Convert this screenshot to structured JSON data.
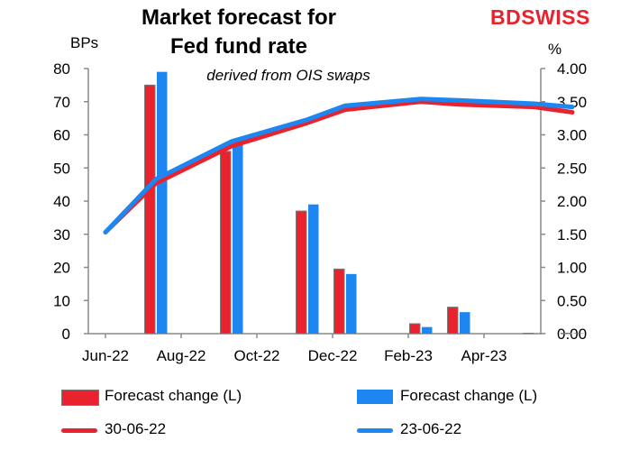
{
  "header": {
    "title_line1": "Market forecast for",
    "title_line2": "Fed fund rate",
    "subtitle": "derived from OIS swaps",
    "left_unit": "BPs",
    "right_unit": "%",
    "logo_bd": "BD",
    "logo_swiss": "SWISS"
  },
  "colors": {
    "red": "#e8232e",
    "blue": "#1e86f0",
    "red_edge": "#7a7a7a",
    "axis": "#8a8a8a"
  },
  "legend": [
    {
      "label": "Forecast change (L)",
      "kind": "bar",
      "color": "#e8232e"
    },
    {
      "label": "Forecast change (L)",
      "kind": "bar",
      "color": "#1e86f0"
    },
    {
      "label": "30-06-22",
      "kind": "line",
      "color": "#e8232e"
    },
    {
      "label": "23-06-22",
      "kind": "line",
      "color": "#1e86f0"
    }
  ],
  "chart_data": {
    "type": "bar+line",
    "title": "Market forecast for Fed fund rate",
    "subtitle": "derived from OIS swaps",
    "x_tick_labels": [
      "Jun-22",
      "Aug-22",
      "Oct-22",
      "Dec-22",
      "Feb-23",
      "Apr-23"
    ],
    "y_left": {
      "label": "BPs",
      "ylim": [
        0,
        80
      ],
      "ticks": [
        "0",
        "10",
        "20",
        "30",
        "40",
        "50",
        "60",
        "70",
        "80"
      ]
    },
    "y_right": {
      "label": "%",
      "ylim": [
        0,
        4
      ],
      "ticks": [
        "0.00",
        "0.50",
        "1.00",
        "1.50",
        "2.00",
        "2.50",
        "3.00",
        "3.50",
        "4.00"
      ]
    },
    "bar_series": [
      {
        "name": "Forecast change (L)",
        "date": "30-06-22",
        "color": "#e8232e",
        "meetings": [
          "Jul-22",
          "Sep-22",
          "Nov-22",
          "Dec-22",
          "Feb-23",
          "Mar-23",
          "May-23",
          "Jun-23"
        ],
        "values": [
          75,
          55,
          37,
          19.5,
          3,
          8,
          0,
          0
        ]
      },
      {
        "name": "Forecast change (L)",
        "date": "23-06-22",
        "color": "#1e86f0",
        "meetings": [
          "Jul-22",
          "Sep-22",
          "Nov-22",
          "Dec-22",
          "Feb-23",
          "Mar-23",
          "May-23",
          "Jun-23"
        ],
        "values": [
          79,
          58,
          39,
          18,
          2,
          6.5,
          0,
          0
        ]
      }
    ],
    "line_series": [
      {
        "name": "30-06-22",
        "color": "#e8232e",
        "points": [
          "Jun-22",
          "Jul-22",
          "Sep-22",
          "Nov-22",
          "Dec-22",
          "Feb-23",
          "Mar-23",
          "May-23",
          "Jun-23"
        ],
        "values": [
          1.53,
          2.27,
          2.83,
          3.18,
          3.38,
          3.5,
          3.46,
          3.42,
          3.34
        ]
      },
      {
        "name": "23-06-22",
        "color": "#1e86f0",
        "points": [
          "Jun-22",
          "Jul-22",
          "Sep-22",
          "Nov-22",
          "Dec-22",
          "Feb-23",
          "Mar-23",
          "May-23",
          "Jun-23"
        ],
        "values": [
          1.53,
          2.33,
          2.9,
          3.23,
          3.44,
          3.54,
          3.52,
          3.47,
          3.42
        ]
      }
    ]
  }
}
